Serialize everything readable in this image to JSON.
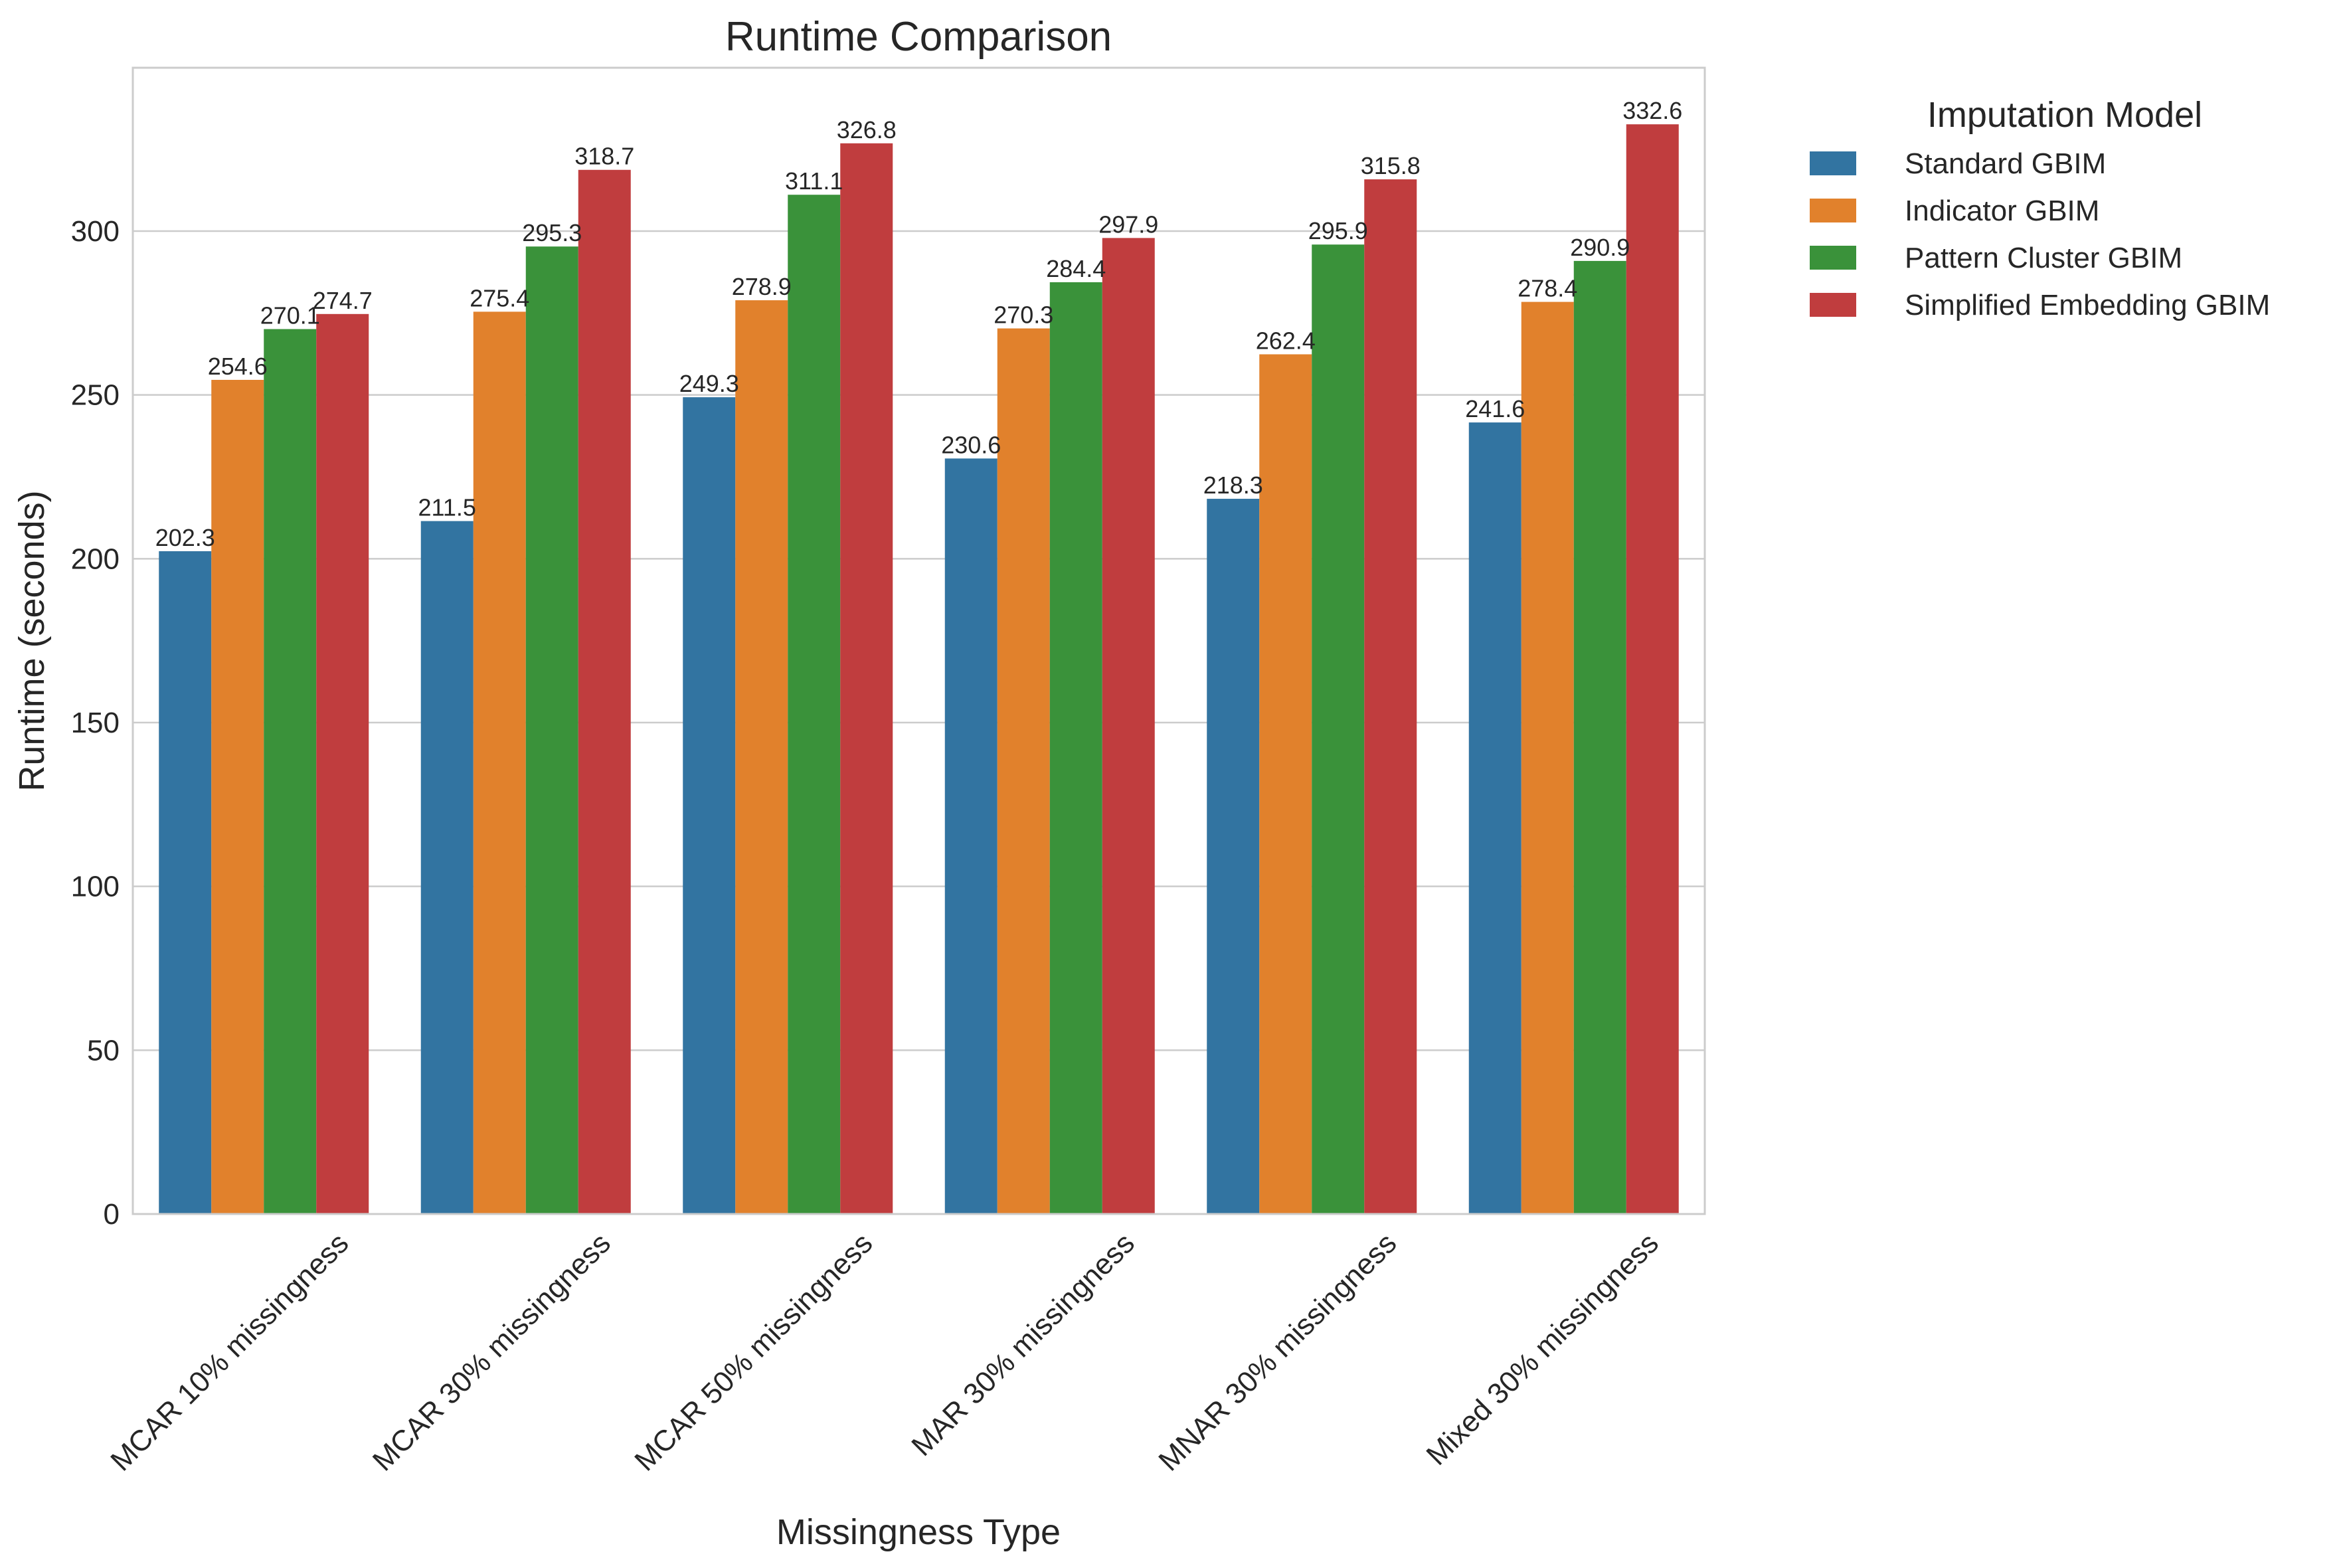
{
  "chart_data": {
    "type": "bar",
    "title": "Runtime Comparison",
    "xlabel": "Missingness Type",
    "ylabel": "Runtime (seconds)",
    "ylim": [
      0,
      350
    ],
    "yticks": [
      0,
      50,
      100,
      150,
      200,
      250,
      300
    ],
    "grid": true,
    "legend_placement": "outside-right",
    "categories": [
      "MCAR 10% missingness",
      "MCAR 30% missingness",
      "MCAR 50% missingness",
      "MAR 30% missingness",
      "MNAR 30% missingness",
      "Mixed 30% missingness"
    ],
    "legend_title": "Imputation Model",
    "series": [
      {
        "name": "Standard GBIM",
        "color": "#3274a1",
        "values": [
          202.3,
          211.5,
          249.3,
          230.6,
          218.3,
          241.6
        ]
      },
      {
        "name": "Indicator GBIM",
        "color": "#e1812c",
        "values": [
          254.6,
          275.4,
          278.9,
          270.3,
          262.4,
          278.4
        ]
      },
      {
        "name": "Pattern Cluster GBIM",
        "color": "#3a923a",
        "values": [
          270.1,
          295.3,
          311.1,
          284.4,
          295.9,
          290.9
        ]
      },
      {
        "name": "Simplified Embedding GBIM",
        "color": "#c03d3e",
        "values": [
          274.7,
          318.7,
          326.8,
          297.9,
          315.8,
          332.6
        ]
      }
    ]
  }
}
